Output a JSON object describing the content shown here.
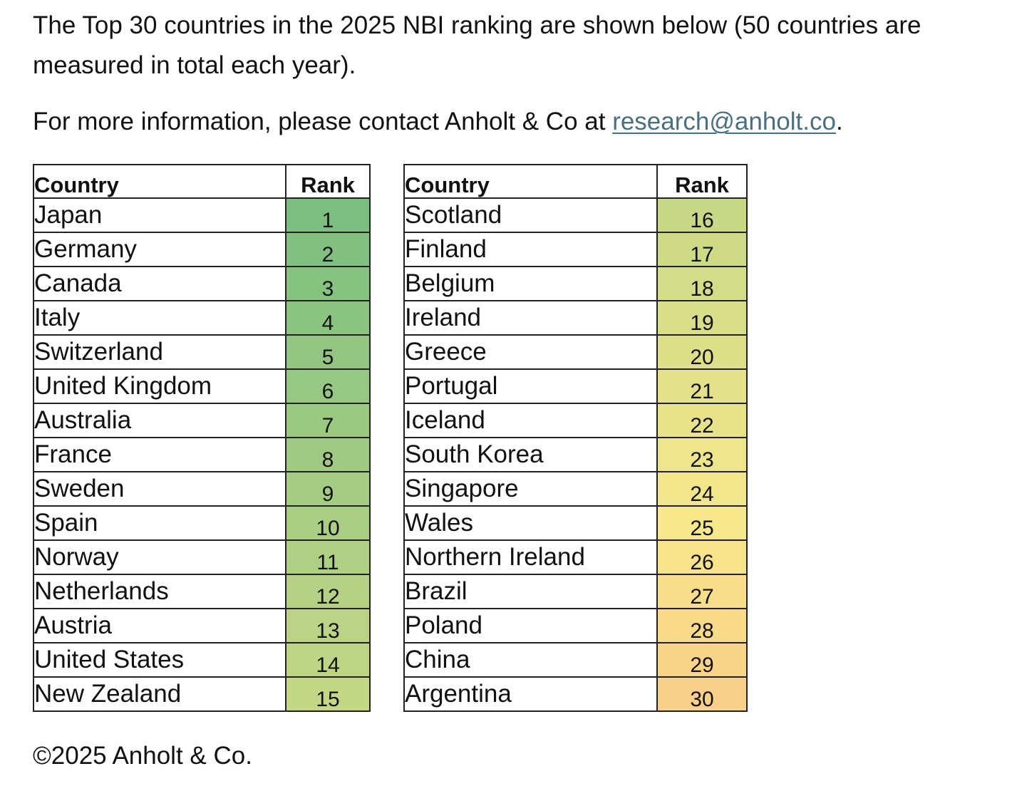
{
  "intro_text": "The Top 30 countries in the 2025 NBI ranking are shown below (50 countries are measured in total each year).",
  "contact": {
    "prefix": "For more information, please contact Anholt & Co at ",
    "email": "research@anholt.co",
    "suffix": "."
  },
  "table": {
    "header_country": "Country",
    "header_rank": "Rank",
    "left_rows": [
      {
        "country": "Japan",
        "rank": "1"
      },
      {
        "country": "Germany",
        "rank": "2"
      },
      {
        "country": "Canada",
        "rank": "3"
      },
      {
        "country": "Italy",
        "rank": "4"
      },
      {
        "country": "Switzerland",
        "rank": "5"
      },
      {
        "country": "United Kingdom",
        "rank": "6"
      },
      {
        "country": "Australia",
        "rank": "7"
      },
      {
        "country": "France",
        "rank": "8"
      },
      {
        "country": "Sweden",
        "rank": "9"
      },
      {
        "country": "Spain",
        "rank": "10"
      },
      {
        "country": "Norway",
        "rank": "11"
      },
      {
        "country": "Netherlands",
        "rank": "12"
      },
      {
        "country": "Austria",
        "rank": "13"
      },
      {
        "country": "United States",
        "rank": "14"
      },
      {
        "country": "New Zealand",
        "rank": "15"
      }
    ],
    "right_rows": [
      {
        "country": "Scotland",
        "rank": "16"
      },
      {
        "country": "Finland",
        "rank": "17"
      },
      {
        "country": "Belgium",
        "rank": "18"
      },
      {
        "country": "Ireland",
        "rank": "19"
      },
      {
        "country": "Greece",
        "rank": "20"
      },
      {
        "country": "Portugal",
        "rank": "21"
      },
      {
        "country": "Iceland",
        "rank": "22"
      },
      {
        "country": "South Korea",
        "rank": "23"
      },
      {
        "country": "Singapore",
        "rank": "24"
      },
      {
        "country": "Wales",
        "rank": "25"
      },
      {
        "country": "Northern Ireland",
        "rank": "26"
      },
      {
        "country": "Brazil",
        "rank": "27"
      },
      {
        "country": "Poland",
        "rank": "28"
      },
      {
        "country": "China",
        "rank": "29"
      },
      {
        "country": "Argentina",
        "rank": "30"
      }
    ],
    "heat_colors": {
      "best": "#7cbe7f",
      "mid": "#f7e88c",
      "worst": "#f9d08a"
    }
  },
  "copyright": "©2025 Anholt & Co."
}
